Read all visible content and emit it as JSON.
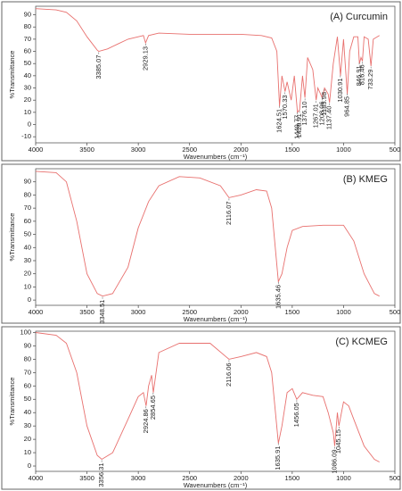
{
  "chart_data": [
    {
      "type": "line",
      "title": "(A) Curcumin",
      "x_label": "Wavenumbers (cm⁻¹)",
      "y_label": "%Transmittance",
      "xlim": [
        4000,
        500
      ],
      "xticks": [
        4000,
        3500,
        3000,
        2500,
        2000,
        1500,
        1000,
        500
      ],
      "ylim": [
        -15,
        97
      ],
      "yticks": [
        -10,
        0,
        10,
        20,
        30,
        40,
        50,
        60,
        70,
        80,
        90
      ],
      "x": [
        4000,
        3800,
        3700,
        3600,
        3500,
        3400,
        3385,
        3300,
        3200,
        3100,
        3000,
        2950,
        2929,
        2900,
        2800,
        2500,
        2000,
        1800,
        1700,
        1650,
        1624,
        1600,
        1570,
        1550,
        1510,
        1480,
        1449,
        1428,
        1400,
        1376,
        1350,
        1300,
        1267,
        1250,
        1208,
        1185,
        1150,
        1137,
        1100,
        1060,
        1030,
        1000,
        964,
        940,
        900,
        860,
        846,
        830,
        816,
        800,
        760,
        733,
        710,
        650
      ],
      "series": [
        {
          "color": "#e8706e",
          "values": [
            95,
            94,
            92,
            85,
            72,
            61,
            60,
            62,
            66,
            70,
            72,
            73,
            67,
            73,
            75,
            74,
            74,
            73,
            71,
            60,
            15,
            40,
            27,
            35,
            20,
            40,
            10,
            12,
            40,
            22,
            55,
            45,
            20,
            30,
            22,
            30,
            25,
            18,
            50,
            72,
            40,
            70,
            25,
            60,
            72,
            72,
            50,
            55,
            52,
            72,
            70,
            48,
            70,
            73
          ]
        }
      ],
      "annotations": [
        {
          "label": "3385.07",
          "x": 3385.07
        },
        {
          "label": "2929.13",
          "x": 2929.13
        },
        {
          "label": "1624.51",
          "x": 1624.51
        },
        {
          "label": "1570.33",
          "x": 1570.33
        },
        {
          "label": "1449.77",
          "x": 1449.77
        },
        {
          "label": "1428.91",
          "x": 1428.91
        },
        {
          "label": "1376.10",
          "x": 1376.1
        },
        {
          "label": "1267.01",
          "x": 1267.01
        },
        {
          "label": "1208.06",
          "x": 1208.06
        },
        {
          "label": "1185.98",
          "x": 1185.98
        },
        {
          "label": "1137.40",
          "x": 1137.4
        },
        {
          "label": "1030.91",
          "x": 1030.91
        },
        {
          "label": "964.85",
          "x": 964.85
        },
        {
          "label": "846.91",
          "x": 846.91
        },
        {
          "label": "816.46",
          "x": 816.46
        },
        {
          "label": "733.29",
          "x": 733.29
        }
      ]
    },
    {
      "type": "line",
      "title": "(B) KMEG",
      "x_label": "Wavenumbers (cm⁻¹)",
      "y_label": "%Transmittance",
      "xlim": [
        4000,
        500
      ],
      "xticks": [
        4000,
        3500,
        3000,
        2500,
        2000,
        1500,
        1000,
        500
      ],
      "ylim": [
        -4,
        100
      ],
      "yticks": [
        0,
        10,
        20,
        30,
        40,
        50,
        60,
        70,
        80,
        90
      ],
      "x": [
        4000,
        3800,
        3700,
        3600,
        3500,
        3400,
        3348,
        3250,
        3100,
        3000,
        2900,
        2800,
        2600,
        2400,
        2200,
        2116,
        2000,
        1850,
        1750,
        1700,
        1635,
        1600,
        1550,
        1500,
        1400,
        1200,
        1000,
        900,
        800,
        700,
        650
      ],
      "series": [
        {
          "color": "#e8706e",
          "values": [
            98,
            97,
            90,
            60,
            20,
            5,
            3,
            5,
            25,
            55,
            75,
            87,
            94,
            93,
            87,
            78,
            80,
            84,
            83,
            70,
            14,
            20,
            40,
            53,
            56,
            57,
            57,
            45,
            20,
            5,
            3
          ]
        }
      ],
      "annotations": [
        {
          "label": "3348.51",
          "x": 3348.51
        },
        {
          "label": "2116.07",
          "x": 2116.07
        },
        {
          "label": "1635.46",
          "x": 1635.46
        }
      ]
    },
    {
      "type": "line",
      "title": "(C) KCMEG",
      "x_label": "Wavenumbers (cm⁻¹)",
      "y_label": "%Transmittance",
      "xlim": [
        4000,
        500
      ],
      "xticks": [
        4000,
        3500,
        3000,
        2500,
        2000,
        1500,
        1000,
        500
      ],
      "ylim": [
        -4,
        101
      ],
      "yticks": [
        0,
        10,
        20,
        30,
        40,
        50,
        60,
        70,
        80,
        90,
        100
      ],
      "x": [
        4000,
        3800,
        3700,
        3600,
        3500,
        3400,
        3356,
        3250,
        3100,
        3000,
        2950,
        2924,
        2900,
        2870,
        2854,
        2800,
        2600,
        2300,
        2116,
        2000,
        1850,
        1750,
        1700,
        1635,
        1600,
        1550,
        1500,
        1456,
        1400,
        1300,
        1200,
        1150,
        1100,
        1086,
        1060,
        1045,
        1000,
        950,
        900,
        800,
        700,
        650
      ],
      "series": [
        {
          "color": "#e8706e",
          "values": [
            100,
            98,
            92,
            70,
            30,
            8,
            5,
            10,
            35,
            52,
            55,
            45,
            60,
            68,
            55,
            85,
            92,
            92,
            80,
            82,
            85,
            82,
            70,
            17,
            30,
            55,
            58,
            50,
            55,
            53,
            52,
            40,
            25,
            15,
            40,
            30,
            48,
            45,
            35,
            15,
            5,
            3
          ]
        }
      ],
      "annotations": [
        {
          "label": "3356.31",
          "x": 3356.31
        },
        {
          "label": "2924.86",
          "x": 2924.86
        },
        {
          "label": "2854.65",
          "x": 2854.65
        },
        {
          "label": "2116.06",
          "x": 2116.06
        },
        {
          "label": "1635.91",
          "x": 1635.91
        },
        {
          "label": "1456.05",
          "x": 1456.05
        },
        {
          "label": "1086.09",
          "x": 1086.09
        },
        {
          "label": "1045.15",
          "x": 1045.15
        }
      ]
    }
  ]
}
